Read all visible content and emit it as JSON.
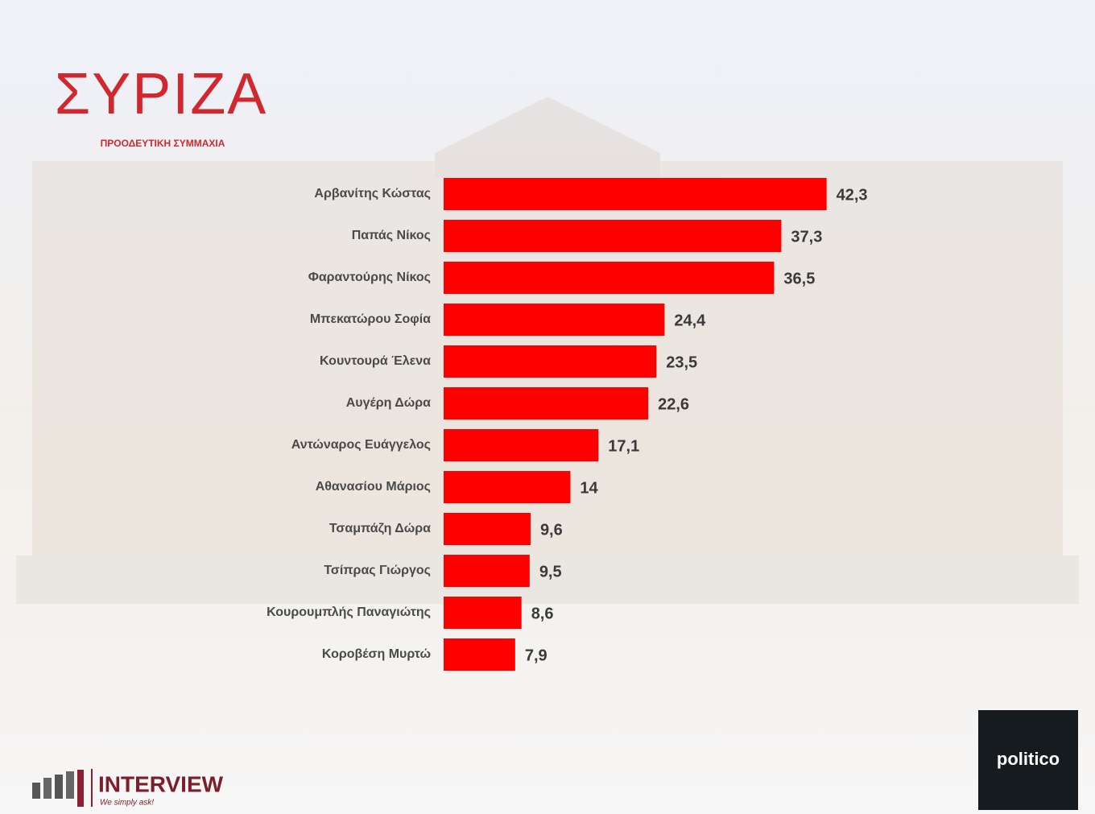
{
  "chart_data": {
    "type": "hbar",
    "categories": [
      "Αρβανίτης Κώστας",
      "Παπάς Νίκος",
      "Φαραντούρης Νίκος",
      "Μπεκατώρου Σοφία",
      "Κουντουρά Έλενα",
      "Αυγέρη Δώρα",
      "Αντώναρος Ευάγγελος",
      "Αθανασίου Μάριος",
      "Τσαμπάζη Δώρα",
      "Τσίπρας Γιώργος",
      "Κουρουμπλής Παναγιώτης",
      "Κοροβέση Μυρτώ"
    ],
    "values": [
      42.3,
      37.3,
      36.5,
      24.4,
      23.5,
      22.6,
      17.1,
      14,
      9.6,
      9.5,
      8.6,
      7.9
    ],
    "value_labels": [
      "42,3",
      "37,3",
      "36,5",
      "24,4",
      "23,5",
      "22,6",
      "17,1",
      "14",
      "9,6",
      "9,5",
      "8,6",
      "7,9"
    ],
    "color": "#ff0000",
    "xlim": [
      0,
      45
    ]
  },
  "branding": {
    "party": "ΣΥΡΙΖΑ",
    "party_subtitle": "ΠΡΟΟΔΕΥΤΙΚΗ ΣΥΜΜΑΧΙΑ",
    "pollster": "INTERVIEW",
    "pollster_tagline": "We simply ask!",
    "media": "politico"
  }
}
